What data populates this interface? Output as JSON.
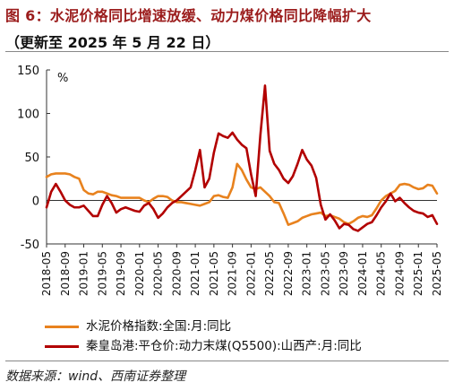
{
  "header": {
    "title": "图 6：水泥价格同比增速放缓、动力煤价格同比降幅扩大",
    "subtitle": "（更新至 2025 年 5 月 22 日）"
  },
  "footer": {
    "source": "数据来源：wind、西南证券整理"
  },
  "chart_data": {
    "type": "line",
    "unit_label": "%",
    "ylim": [
      -50,
      150
    ],
    "yticks": [
      -50,
      0,
      50,
      100,
      150
    ],
    "xlim": [
      "2018-05",
      "2025-05"
    ],
    "xticks": [
      "2018-05",
      "2018-09",
      "2019-01",
      "2019-05",
      "2019-09",
      "2020-01",
      "2020-05",
      "2020-09",
      "2021-01",
      "2021-05",
      "2021-09",
      "2022-01",
      "2022-05",
      "2022-09",
      "2023-01",
      "2023-05",
      "2023-09",
      "2024-01",
      "2024-05",
      "2024-09",
      "2025-01",
      "2025-05"
    ],
    "grid": false,
    "legend_position": "bottom",
    "series": [
      {
        "name": "水泥价格指数:全国:月:同比",
        "color": "#e8821e",
        "points": [
          [
            "2018-05",
            27
          ],
          [
            "2018-06",
            30
          ],
          [
            "2018-07",
            31
          ],
          [
            "2018-08",
            31
          ],
          [
            "2018-09",
            31
          ],
          [
            "2018-10",
            30
          ],
          [
            "2018-11",
            27
          ],
          [
            "2018-12",
            25
          ],
          [
            "2019-01",
            12
          ],
          [
            "2019-02",
            8
          ],
          [
            "2019-03",
            7
          ],
          [
            "2019-04",
            10
          ],
          [
            "2019-05",
            10
          ],
          [
            "2019-06",
            8
          ],
          [
            "2019-07",
            6
          ],
          [
            "2019-08",
            5
          ],
          [
            "2019-09",
            3
          ],
          [
            "2019-10",
            3
          ],
          [
            "2019-11",
            3
          ],
          [
            "2019-12",
            3
          ],
          [
            "2020-01",
            3
          ],
          [
            "2020-02",
            0
          ],
          [
            "2020-03",
            -2
          ],
          [
            "2020-04",
            2
          ],
          [
            "2020-05",
            5
          ],
          [
            "2020-06",
            5
          ],
          [
            "2020-07",
            4
          ],
          [
            "2020-08",
            0
          ],
          [
            "2020-09",
            -2
          ],
          [
            "2020-10",
            -2
          ],
          [
            "2020-11",
            -3
          ],
          [
            "2020-12",
            -4
          ],
          [
            "2021-01",
            -5
          ],
          [
            "2021-02",
            -6
          ],
          [
            "2021-03",
            -4
          ],
          [
            "2021-04",
            -2
          ],
          [
            "2021-05",
            5
          ],
          [
            "2021-06",
            6
          ],
          [
            "2021-07",
            4
          ],
          [
            "2021-08",
            3
          ],
          [
            "2021-09",
            15
          ],
          [
            "2021-10",
            42
          ],
          [
            "2021-11",
            35
          ],
          [
            "2021-12",
            24
          ],
          [
            "2022-01",
            15
          ],
          [
            "2022-02",
            13
          ],
          [
            "2022-03",
            15
          ],
          [
            "2022-04",
            10
          ],
          [
            "2022-05",
            5
          ],
          [
            "2022-06",
            -2
          ],
          [
            "2022-07",
            -3
          ],
          [
            "2022-08",
            -15
          ],
          [
            "2022-09",
            -28
          ],
          [
            "2022-10",
            -26
          ],
          [
            "2022-11",
            -24
          ],
          [
            "2022-12",
            -20
          ],
          [
            "2023-01",
            -18
          ],
          [
            "2023-02",
            -16
          ],
          [
            "2023-03",
            -15
          ],
          [
            "2023-04",
            -14
          ],
          [
            "2023-05",
            -18
          ],
          [
            "2023-06",
            -17
          ],
          [
            "2023-07",
            -19
          ],
          [
            "2023-08",
            -21
          ],
          [
            "2023-09",
            -25
          ],
          [
            "2023-10",
            -27
          ],
          [
            "2023-11",
            -24
          ],
          [
            "2023-12",
            -20
          ],
          [
            "2024-01",
            -18
          ],
          [
            "2024-02",
            -19
          ],
          [
            "2024-03",
            -17
          ],
          [
            "2024-04",
            -9
          ],
          [
            "2024-05",
            0
          ],
          [
            "2024-06",
            5
          ],
          [
            "2024-07",
            8
          ],
          [
            "2024-08",
            11
          ],
          [
            "2024-09",
            18
          ],
          [
            "2024-10",
            19
          ],
          [
            "2024-11",
            18
          ],
          [
            "2024-12",
            15
          ],
          [
            "2025-01",
            13
          ],
          [
            "2025-02",
            14
          ],
          [
            "2025-03",
            18
          ],
          [
            "2025-04",
            17
          ],
          [
            "2025-05",
            8
          ]
        ]
      },
      {
        "name": "秦皇岛港:平仓价:动力末煤(Q5500):山西产:月:同比",
        "color": "#b20000",
        "points": [
          [
            "2018-05",
            -8
          ],
          [
            "2018-06",
            10
          ],
          [
            "2018-07",
            19
          ],
          [
            "2018-08",
            10
          ],
          [
            "2018-09",
            0
          ],
          [
            "2018-10",
            -5
          ],
          [
            "2018-11",
            -8
          ],
          [
            "2018-12",
            -8
          ],
          [
            "2019-01",
            -6
          ],
          [
            "2019-02",
            -12
          ],
          [
            "2019-03",
            -18
          ],
          [
            "2019-04",
            -18
          ],
          [
            "2019-05",
            -5
          ],
          [
            "2019-06",
            5
          ],
          [
            "2019-07",
            -3
          ],
          [
            "2019-08",
            -14
          ],
          [
            "2019-09",
            -10
          ],
          [
            "2019-10",
            -8
          ],
          [
            "2019-11",
            -10
          ],
          [
            "2019-12",
            -12
          ],
          [
            "2020-01",
            -13
          ],
          [
            "2020-02",
            -6
          ],
          [
            "2020-03",
            -3
          ],
          [
            "2020-04",
            -10
          ],
          [
            "2020-05",
            -20
          ],
          [
            "2020-06",
            -15
          ],
          [
            "2020-07",
            -8
          ],
          [
            "2020-08",
            -3
          ],
          [
            "2020-09",
            0
          ],
          [
            "2020-10",
            5
          ],
          [
            "2020-11",
            10
          ],
          [
            "2020-12",
            15
          ],
          [
            "2021-01",
            35
          ],
          [
            "2021-02",
            58
          ],
          [
            "2021-03",
            15
          ],
          [
            "2021-04",
            25
          ],
          [
            "2021-05",
            55
          ],
          [
            "2021-06",
            77
          ],
          [
            "2021-07",
            74
          ],
          [
            "2021-08",
            72
          ],
          [
            "2021-09",
            78
          ],
          [
            "2021-10",
            70
          ],
          [
            "2021-11",
            64
          ],
          [
            "2021-12",
            60
          ],
          [
            "2022-01",
            30
          ],
          [
            "2022-02",
            5
          ],
          [
            "2022-03",
            75
          ],
          [
            "2022-04",
            132
          ],
          [
            "2022-05",
            57
          ],
          [
            "2022-06",
            42
          ],
          [
            "2022-07",
            35
          ],
          [
            "2022-08",
            25
          ],
          [
            "2022-09",
            20
          ],
          [
            "2022-10",
            28
          ],
          [
            "2022-11",
            42
          ],
          [
            "2022-12",
            58
          ],
          [
            "2023-01",
            47
          ],
          [
            "2023-02",
            40
          ],
          [
            "2023-03",
            26
          ],
          [
            "2023-04",
            -5
          ],
          [
            "2023-05",
            -22
          ],
          [
            "2023-06",
            -16
          ],
          [
            "2023-07",
            -23
          ],
          [
            "2023-08",
            -32
          ],
          [
            "2023-09",
            -27
          ],
          [
            "2023-10",
            -28
          ],
          [
            "2023-11",
            -33
          ],
          [
            "2023-12",
            -35
          ],
          [
            "2024-01",
            -31
          ],
          [
            "2024-02",
            -27
          ],
          [
            "2024-03",
            -25
          ],
          [
            "2024-04",
            -17
          ],
          [
            "2024-05",
            -8
          ],
          [
            "2024-06",
            -1
          ],
          [
            "2024-07",
            8
          ],
          [
            "2024-08",
            -1
          ],
          [
            "2024-09",
            3
          ],
          [
            "2024-10",
            -3
          ],
          [
            "2024-11",
            -8
          ],
          [
            "2024-12",
            -12
          ],
          [
            "2025-01",
            -14
          ],
          [
            "2025-02",
            -15
          ],
          [
            "2025-03",
            -19
          ],
          [
            "2025-04",
            -17
          ],
          [
            "2025-05",
            -27
          ]
        ]
      }
    ]
  }
}
